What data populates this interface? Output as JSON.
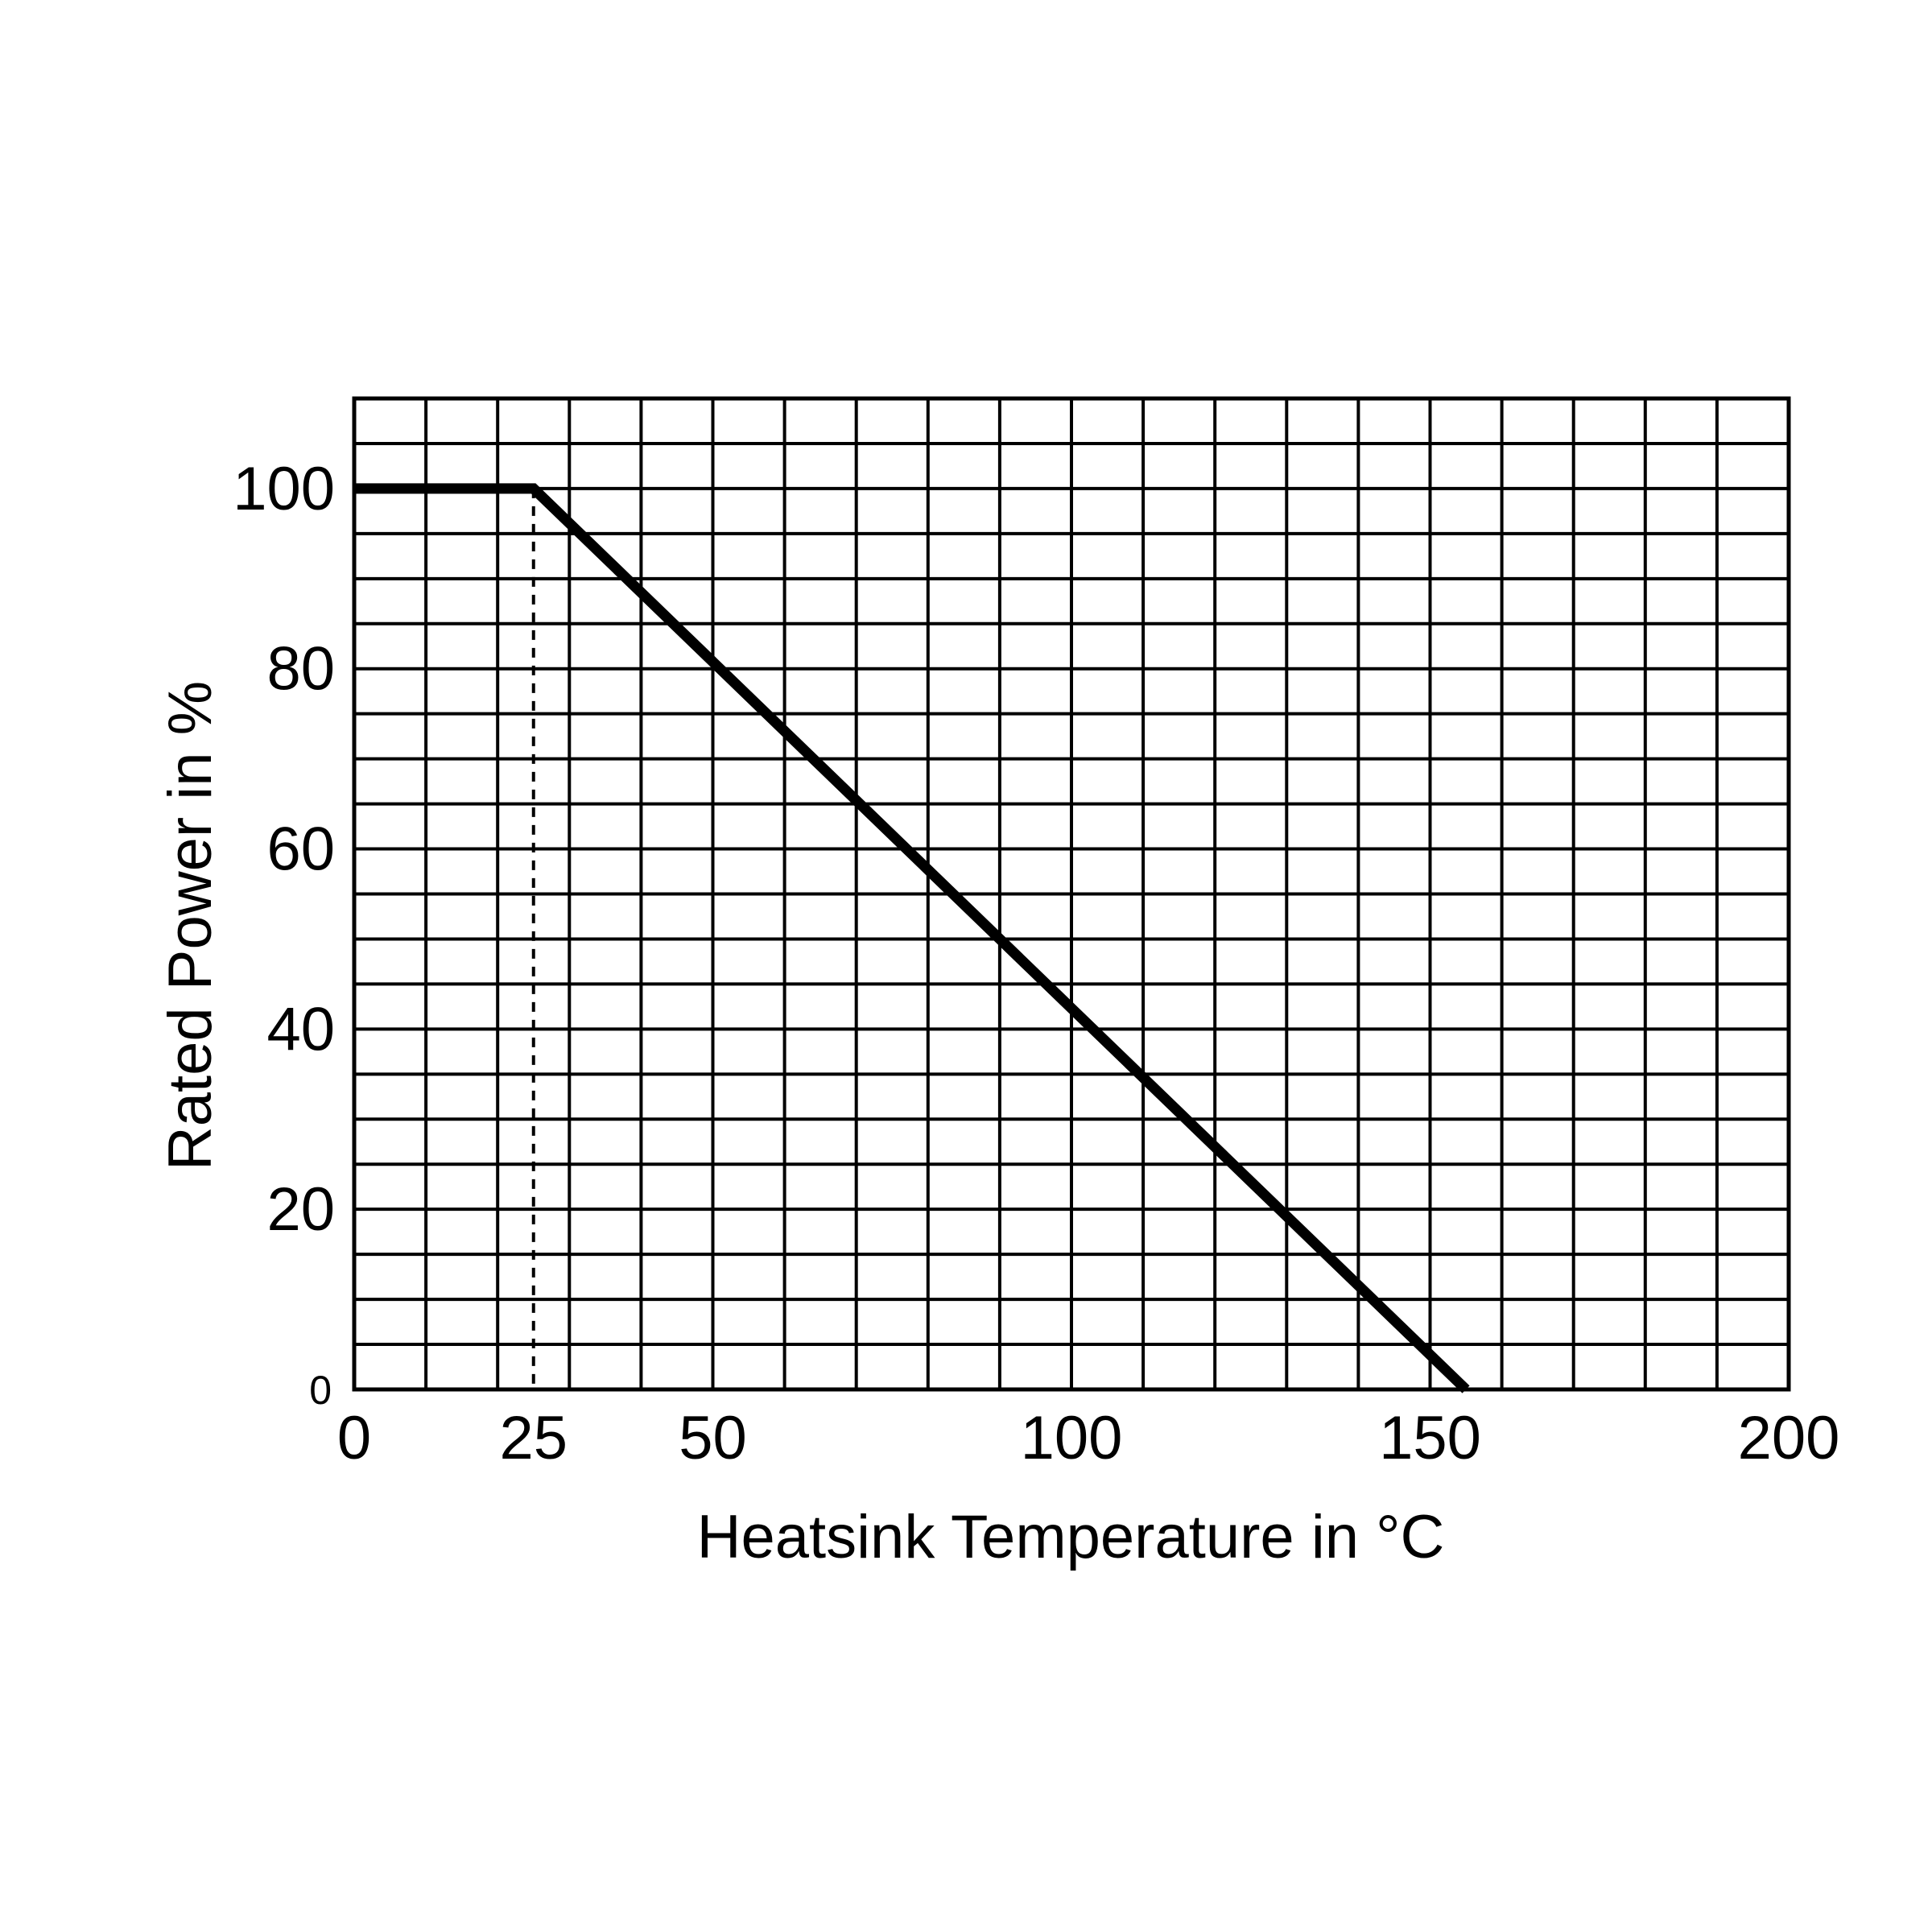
{
  "chart_data": {
    "type": "line",
    "title": "",
    "xlabel": "Heatsink Temperature in °C",
    "ylabel": "Rated Power in %",
    "xlim": [
      0,
      200
    ],
    "ylim": [
      0,
      110
    ],
    "grid": true,
    "x_ticks": [
      "0",
      "25",
      "50",
      "100",
      "150",
      "200"
    ],
    "y_ticks": [
      "0",
      "20",
      "40",
      "60",
      "80",
      "100"
    ],
    "series": [
      {
        "x": [
          0,
          25,
          155
        ],
        "y": [
          100,
          100,
          0
        ],
        "style": "solid"
      }
    ],
    "reference_lines": [
      {
        "type": "vertical",
        "x": 25,
        "y_range": [
          0,
          100
        ],
        "style": "dashed"
      }
    ],
    "colors": {
      "line": "#000000",
      "grid": "#000000",
      "background": "#ffffff"
    }
  }
}
